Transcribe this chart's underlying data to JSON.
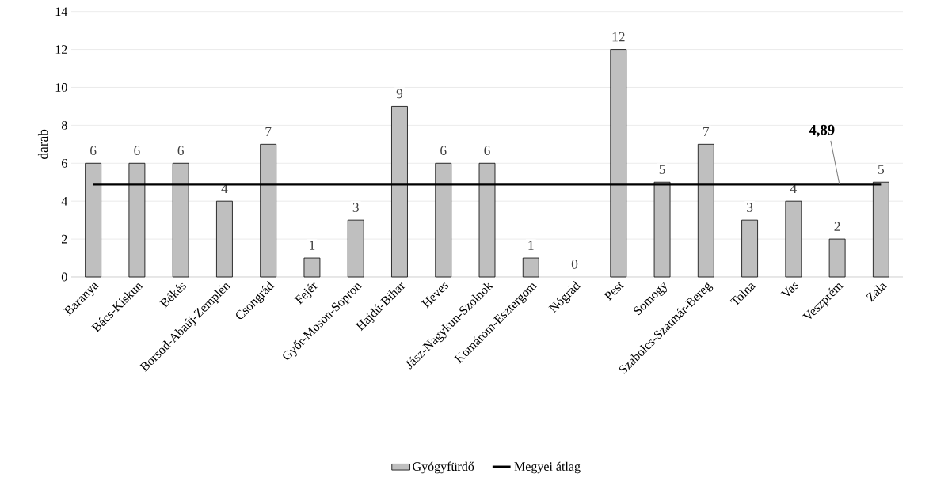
{
  "chart_data": {
    "type": "bar",
    "ylabel": "darab",
    "categories": [
      "Baranya",
      "Bács-Kiskun",
      "Békés",
      "Borsod-Abaúj-Zemplén",
      "Csongrád",
      "Fejér",
      "Győr-Moson-Sopron",
      "Hajdú-Bihar",
      "Heves",
      "Jász-Nagykun-Szolnok",
      "Komárom-Esztergom",
      "Nógrád",
      "Pest",
      "Somogy",
      "Szabolcs-Szatmár-Bereg",
      "Tolna",
      "Vas",
      "Veszprém",
      "Zala"
    ],
    "series": [
      {
        "name": "Gyógyfürdő",
        "color": "#bfbfbf",
        "values": [
          6,
          6,
          6,
          4,
          7,
          1,
          3,
          9,
          6,
          6,
          1,
          0,
          12,
          5,
          7,
          3,
          4,
          2,
          5
        ],
        "value_labels": [
          "6",
          "6",
          "6",
          "4",
          "7",
          "1",
          "3",
          "9",
          "6",
          "6",
          "1",
          "0",
          "12",
          "5",
          "7",
          "3",
          "4",
          "2",
          "5"
        ]
      },
      {
        "name": "Megyei átlag",
        "type": "line",
        "color": "#000000",
        "values": [
          4.89,
          4.89,
          4.89,
          4.89,
          4.89,
          4.89,
          4.89,
          4.89,
          4.89,
          4.89,
          4.89,
          4.89,
          4.89,
          4.89,
          4.89,
          4.89,
          4.89,
          4.89,
          4.89
        ]
      }
    ],
    "annotations": [
      {
        "text": "4,89",
        "x": "Veszprém",
        "y": 4.89
      }
    ],
    "ylim": [
      0,
      14
    ],
    "yticks": [
      0,
      2,
      4,
      6,
      8,
      10,
      12,
      14
    ],
    "grid": "y",
    "legend": "bottom"
  }
}
